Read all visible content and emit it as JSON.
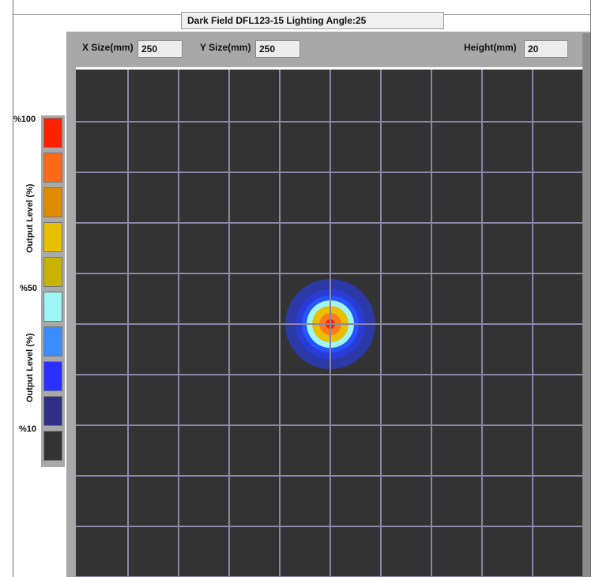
{
  "window": {
    "title": "Dark Field DFL123-15 Lighting Angle:25"
  },
  "toolbar": {
    "x_size_label": "X Size(mm)",
    "x_size_value": "250",
    "y_size_label": "Y Size(mm)",
    "y_size_value": "250",
    "height_label": "Height(mm)",
    "height_value": "20"
  },
  "legend": {
    "top_label": "%100",
    "mid_label": "%50",
    "low_label": "%10",
    "axis_label_upper": "Output Level (%)",
    "axis_label_lower": "Output Level (%)",
    "colors": [
      "#ff2200",
      "#ff6a18",
      "#e08c00",
      "#e8c000",
      "#c8b400",
      "#9ff4f4",
      "#3a8cff",
      "#2a30ff",
      "#2f3084",
      "#333333"
    ]
  },
  "plot": {
    "background": "#333333",
    "grid_color": "#8a87a6",
    "rings": [
      {
        "color": "#2b3aa6"
      },
      {
        "color": "#2a3bd8"
      },
      {
        "color": "#2455ff"
      },
      {
        "color": "#9ff4f4"
      },
      {
        "color": "#e8c000"
      },
      {
        "color": "#ff7a1a"
      },
      {
        "color": "#ff2200"
      }
    ]
  }
}
